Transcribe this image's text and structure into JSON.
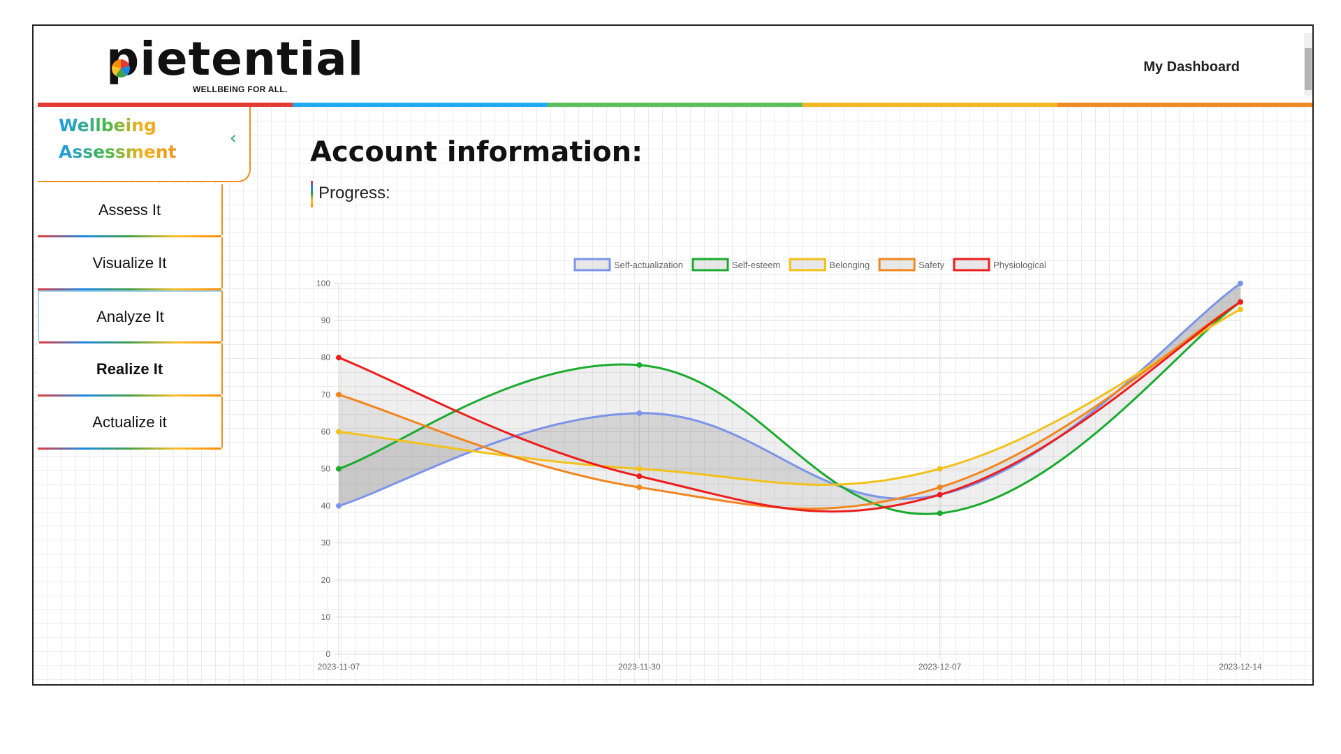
{
  "header": {
    "logo_text": "pietential",
    "logo_tagline": "WELLBEING FOR ALL.",
    "nav_link": "My Dashboard"
  },
  "sidebar": {
    "title_line1": "Wellbeing",
    "title_line2": "Assessment",
    "collapse_icon": "chevron-left-icon",
    "items": [
      {
        "label": "Assess It"
      },
      {
        "label": "Visualize It"
      },
      {
        "label": "Analyze It"
      },
      {
        "label": "Realize It"
      },
      {
        "label": "Actualize it"
      }
    ]
  },
  "main": {
    "title": "Account information:",
    "progress_label": "Progress:"
  },
  "colors": {
    "rainbow": [
      "#e53935",
      "#1eaaf0",
      "#5cbf5c",
      "#f2b824",
      "#f08a24"
    ]
  },
  "chart_data": {
    "type": "line",
    "title": "",
    "xlabel": "",
    "ylabel": "",
    "ylim": [
      0,
      100
    ],
    "yticks": [
      0,
      10,
      20,
      30,
      40,
      50,
      60,
      70,
      80,
      90,
      100
    ],
    "categories": [
      "2023-11-07",
      "2023-11-30",
      "2023-12-07",
      "2023-12-14"
    ],
    "legend_position": "top-center",
    "grid": true,
    "series": [
      {
        "name": "Self-actualization",
        "color": "#7b93ea",
        "values": [
          40,
          65,
          43,
          100
        ]
      },
      {
        "name": "Self-esteem",
        "color": "#1aab2e",
        "values": [
          50,
          78,
          38,
          95
        ]
      },
      {
        "name": "Belonging",
        "color": "#f2c21a",
        "values": [
          60,
          50,
          50,
          93
        ]
      },
      {
        "name": "Safety",
        "color": "#f2861e",
        "values": [
          70,
          45,
          45,
          95
        ]
      },
      {
        "name": "Physiological",
        "color": "#ee1c1c",
        "values": [
          80,
          48,
          43,
          95
        ]
      }
    ]
  }
}
